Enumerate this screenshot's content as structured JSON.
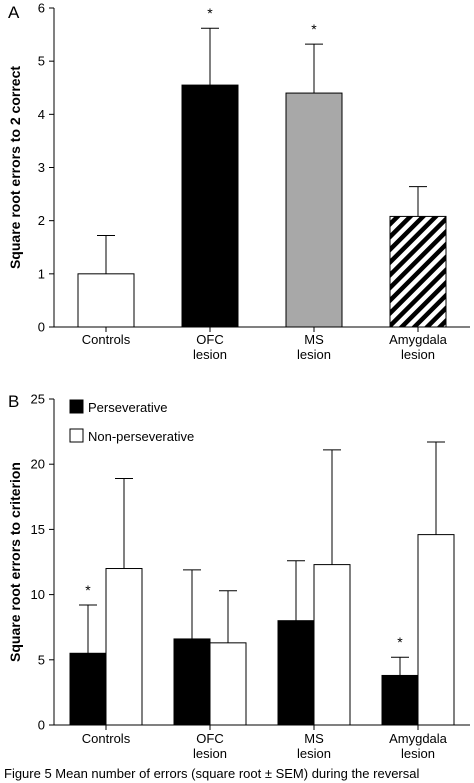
{
  "chart_data": [
    {
      "panel": "A",
      "type": "bar",
      "ylabel": "Square root errors to 2 correct",
      "ylim": [
        0,
        6
      ],
      "yticks": [
        0,
        1,
        2,
        3,
        4,
        5,
        6
      ],
      "categories": [
        [
          "Controls"
        ],
        [
          "OFC",
          "lesion"
        ],
        [
          "MS",
          "lesion"
        ],
        [
          "Amygdala",
          "lesion"
        ]
      ],
      "series": [
        {
          "values": [
            1.0,
            4.55,
            4.4,
            2.08
          ],
          "errors": [
            0.72,
            1.07,
            0.92,
            0.56
          ],
          "fills": [
            "#ffffff",
            "#000000",
            "#a8a8a8",
            "hatch"
          ],
          "significant": [
            false,
            true,
            true,
            false
          ]
        }
      ],
      "significance_marker": "*"
    },
    {
      "panel": "B",
      "type": "bar",
      "ylabel": "Square root errors to criterion",
      "ylim": [
        0,
        25
      ],
      "yticks": [
        0,
        5,
        10,
        15,
        20,
        25
      ],
      "categories": [
        [
          "Controls"
        ],
        [
          "OFC",
          "lesion"
        ],
        [
          "MS",
          "lesion"
        ],
        [
          "Amygdala",
          "lesion"
        ]
      ],
      "legend_position": "top-left",
      "series": [
        {
          "name": "Perseverative",
          "color": "#000000",
          "values": [
            5.5,
            6.6,
            8.0,
            3.8
          ],
          "errors": [
            3.7,
            5.3,
            4.6,
            1.4
          ],
          "significant": [
            true,
            false,
            false,
            true
          ]
        },
        {
          "name": "Non-perseverative",
          "color": "#ffffff",
          "values": [
            12.0,
            6.3,
            12.3,
            14.6
          ],
          "errors": [
            6.9,
            4.0,
            8.8,
            7.1
          ],
          "significant": [
            false,
            false,
            false,
            false
          ]
        }
      ],
      "significance_marker": "*"
    }
  ],
  "caption": "Figure 5 Mean number of errors (square root ± SEM) during the reversal"
}
